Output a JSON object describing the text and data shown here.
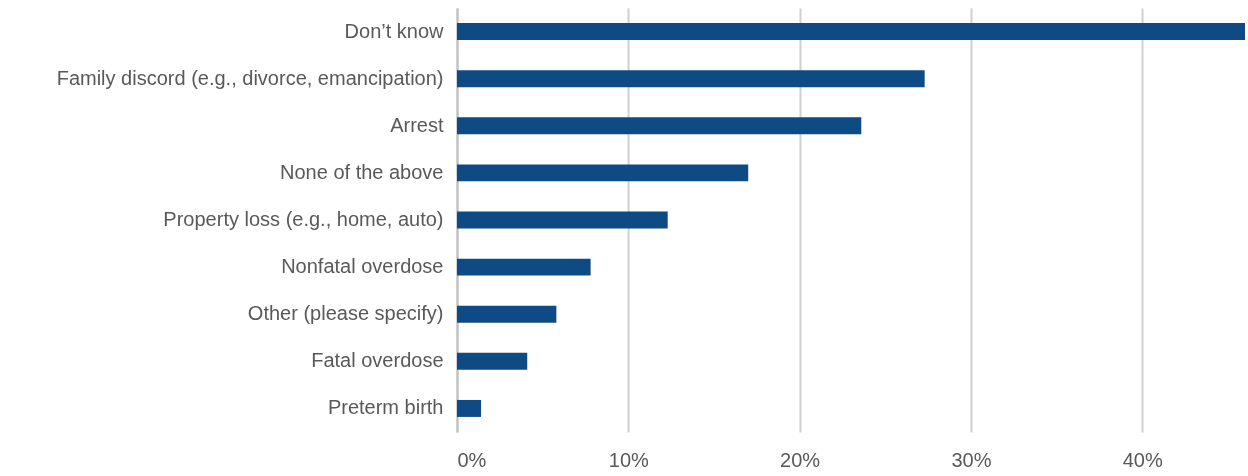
{
  "chart_data": {
    "type": "bar",
    "orientation": "horizontal",
    "categories": [
      "Don’t know",
      "Family discord (e.g., divorce, emancipation)",
      "Arrest",
      "None of the above",
      "Property loss (e.g., home, auto)",
      "Nonfatal overdose",
      "Other (please specify)",
      "Fatal overdose",
      "Preterm birth"
    ],
    "values": [
      46,
      27.3,
      23.6,
      17,
      12.3,
      7.8,
      5.8,
      4.1,
      1.4
    ],
    "color": "#0e4a84",
    "xlim": [
      0,
      46
    ],
    "xticks": [
      {
        "value": 0,
        "label": "0%"
      },
      {
        "value": 10,
        "label": "10%"
      },
      {
        "value": 20,
        "label": "20%"
      },
      {
        "value": 30,
        "label": "30%"
      },
      {
        "value": 40,
        "label": "40%"
      }
    ],
    "grid": "x"
  }
}
